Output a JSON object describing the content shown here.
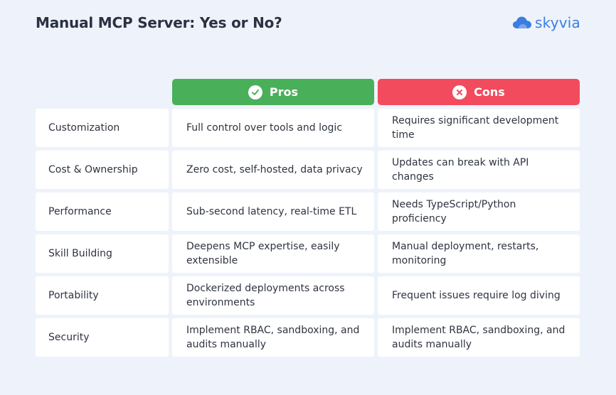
{
  "header": {
    "title": "Manual MCP Server: Yes or No?",
    "logo_text": "skyvia",
    "logo_icon": "cloud-icon",
    "logo_color": "#3b7de0"
  },
  "columns": {
    "pros": {
      "label": "Pros",
      "icon": "check-icon",
      "color": "#4aaf59"
    },
    "cons": {
      "label": "Cons",
      "icon": "close-icon",
      "color": "#f24b5e"
    }
  },
  "rows": [
    {
      "label": "Customization",
      "pros": "Full control over tools and logic",
      "cons": "Requires significant development time"
    },
    {
      "label": "Cost & Ownership",
      "pros": "Zero cost, self-hosted, data privacy",
      "cons": "Updates can break with API changes"
    },
    {
      "label": "Performance",
      "pros": "Sub-second latency, real-time ETL",
      "cons": "Needs TypeScript/Python proficiency"
    },
    {
      "label": "Skill Building",
      "pros": "Deepens MCP expertise, easily extensible",
      "cons": "Manual deployment, restarts, monitoring"
    },
    {
      "label": "Portability",
      "pros": "Dockerized deployments across environments",
      "cons": "Frequent issues require log diving"
    },
    {
      "label": "Security",
      "pros": "Implement RBAC, sandboxing, and audits manually",
      "cons": "Implement RBAC, sandboxing, and audits manually"
    }
  ]
}
